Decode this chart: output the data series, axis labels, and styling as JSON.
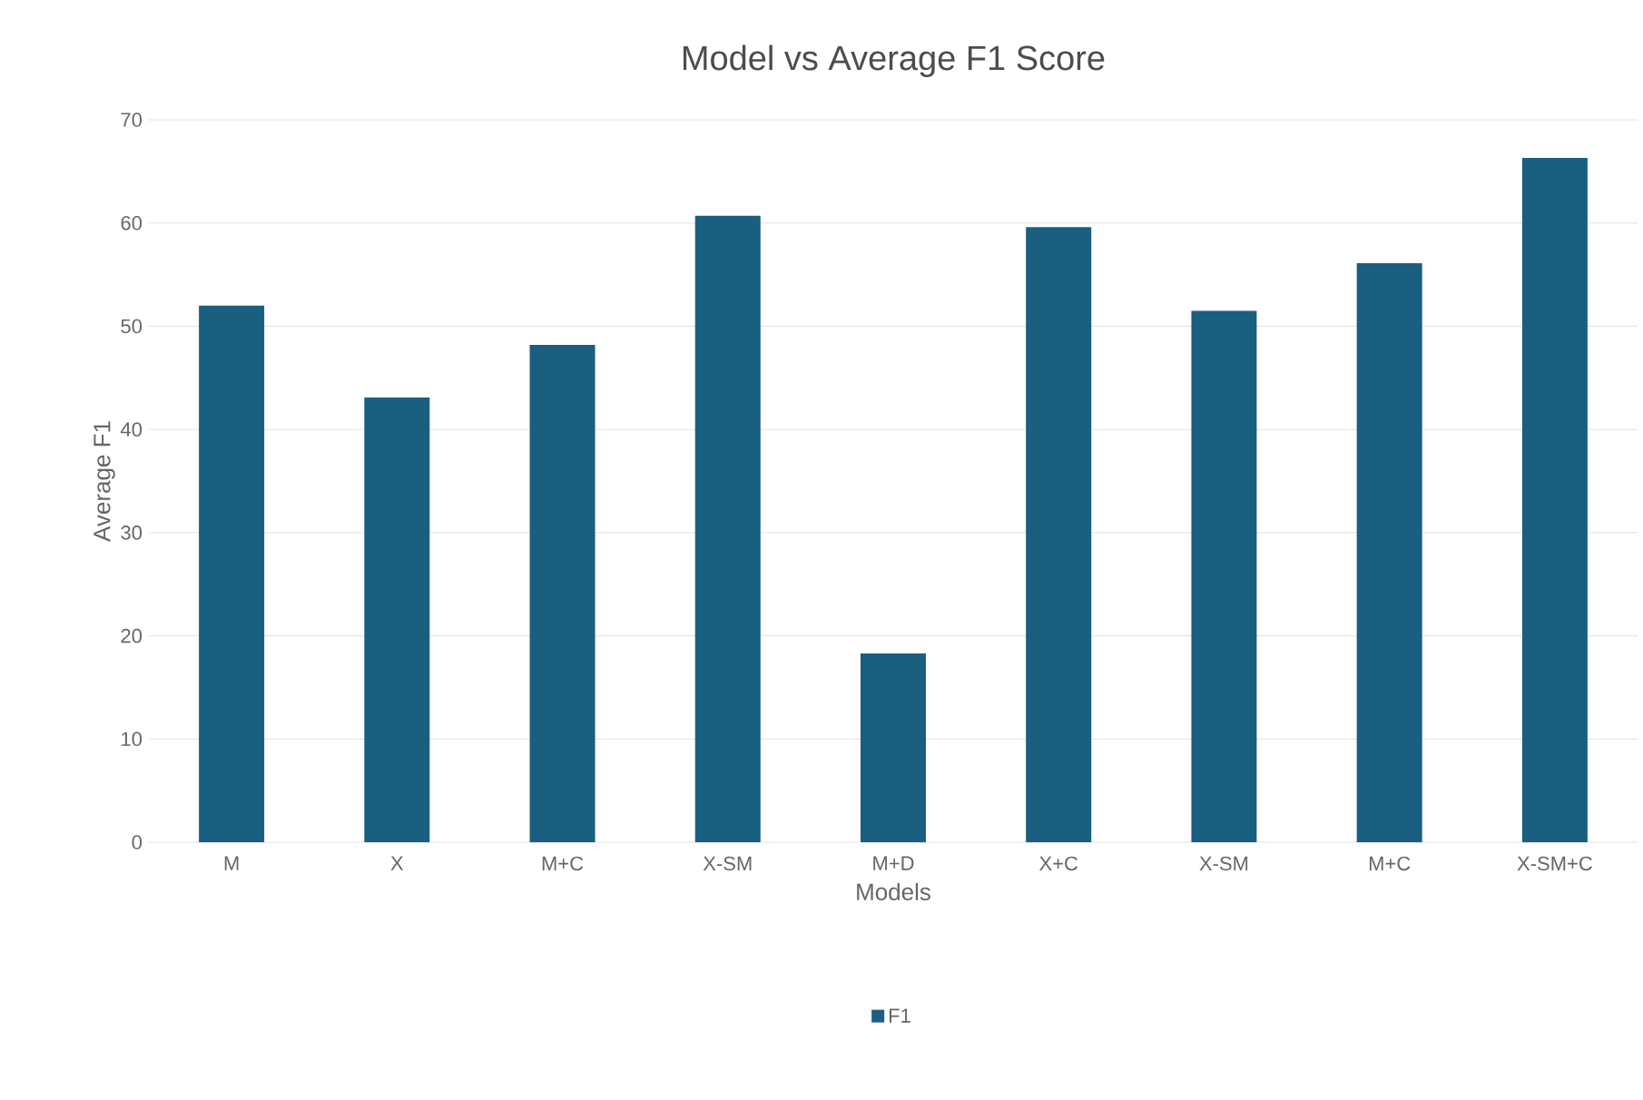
{
  "chart_data": {
    "type": "bar",
    "title": "Model vs Average F1 Score",
    "xlabel": "Models",
    "ylabel": "Average F1",
    "categories": [
      "M",
      "X",
      "M+C",
      "X-SM",
      "M+D",
      "X+C",
      "X-SM",
      "M+C",
      "X-SM+C"
    ],
    "series": [
      {
        "name": "F1",
        "color": "#1a5e80",
        "values": [
          52,
          43.1,
          48.2,
          60.7,
          18.3,
          59.6,
          51.5,
          56.1,
          66.3
        ]
      }
    ],
    "ylim": [
      0,
      70
    ],
    "yticks": [
      0,
      10,
      20,
      30,
      40,
      50,
      60,
      70
    ],
    "grid": "y",
    "legend": "bottom"
  }
}
